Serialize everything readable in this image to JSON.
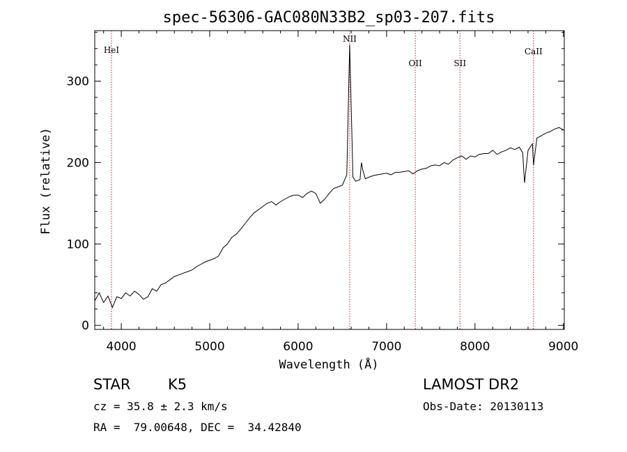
{
  "chart_data": {
    "type": "line",
    "title": "spec-56306-GAC080N33B2_sp03-207.fits",
    "xlabel": "Wavelength (Å)",
    "ylabel": "Flux (relative)",
    "xlim": [
      3700,
      9010
    ],
    "ylim": [
      -5,
      362
    ],
    "xticks": [
      4000,
      5000,
      6000,
      7000,
      8000,
      9000
    ],
    "yticks": [
      0,
      100,
      200,
      300
    ],
    "grid": false,
    "lines": [
      {
        "label": "HeI",
        "x": 3889
      },
      {
        "label": "NII",
        "x": 6583
      },
      {
        "label": "OII",
        "x": 7325
      },
      {
        "label": "SII",
        "x": 7830
      },
      {
        "label": "CaII",
        "x": 8662
      }
    ],
    "x": [
      3700,
      3750,
      3800,
      3850,
      3900,
      3950,
      4000,
      4050,
      4100,
      4150,
      4200,
      4250,
      4300,
      4350,
      4400,
      4450,
      4500,
      4550,
      4600,
      4650,
      4700,
      4750,
      4800,
      4850,
      4900,
      4950,
      5000,
      5050,
      5100,
      5150,
      5200,
      5250,
      5300,
      5350,
      5400,
      5450,
      5500,
      5550,
      5600,
      5650,
      5700,
      5750,
      5800,
      5850,
      5900,
      5950,
      6000,
      6050,
      6100,
      6150,
      6200,
      6250,
      6300,
      6350,
      6400,
      6450,
      6500,
      6550,
      6583,
      6620,
      6650,
      6700,
      6716,
      6731,
      6760,
      6800,
      6850,
      6900,
      6950,
      7000,
      7050,
      7100,
      7150,
      7200,
      7250,
      7300,
      7350,
      7400,
      7450,
      7500,
      7550,
      7600,
      7650,
      7700,
      7750,
      7800,
      7850,
      7900,
      7950,
      8000,
      8050,
      8100,
      8150,
      8200,
      8250,
      8300,
      8350,
      8400,
      8450,
      8500,
      8540,
      8560,
      8600,
      8650,
      8662,
      8700,
      8750,
      8800,
      8850,
      8900,
      8950,
      9000
    ],
    "y": [
      30,
      40,
      28,
      36,
      22,
      35,
      33,
      40,
      36,
      42,
      38,
      32,
      35,
      45,
      42,
      50,
      52,
      56,
      60,
      62,
      64,
      66,
      68,
      72,
      75,
      78,
      80,
      82,
      85,
      95,
      100,
      108,
      112,
      118,
      125,
      132,
      138,
      142,
      146,
      150,
      152,
      148,
      152,
      155,
      158,
      160,
      160,
      157,
      162,
      165,
      162,
      150,
      155,
      162,
      168,
      170,
      172,
      185,
      345,
      182,
      177,
      179,
      200,
      191,
      180,
      182,
      184,
      185,
      186,
      187,
      185,
      188,
      188,
      189,
      190,
      186,
      190,
      192,
      193,
      196,
      197,
      196,
      200,
      198,
      203,
      206,
      208,
      204,
      208,
      207,
      210,
      211,
      211,
      215,
      210,
      213,
      215,
      218,
      216,
      219,
      212,
      175,
      215,
      223,
      197,
      230,
      233,
      236,
      238,
      241,
      243,
      240
    ]
  },
  "info": {
    "class_label": "STAR",
    "subclass_label": "K5",
    "survey": "LAMOST DR2",
    "redshift": "cz = 35.8 ± 2.3 km/s",
    "obs_date": "Obs-Date: 20130113",
    "coords": "RA =  79.00648, DEC =  34.42840"
  }
}
